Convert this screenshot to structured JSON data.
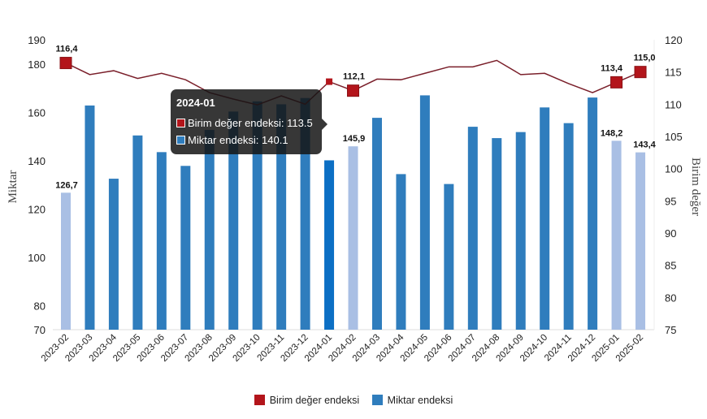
{
  "chart_data": {
    "type": "bar+line",
    "categories": [
      "2023-02",
      "2023-03",
      "2023-04",
      "2023-05",
      "2023-06",
      "2023-07",
      "2023-08",
      "2023-09",
      "2023-10",
      "2023-11",
      "2023-12",
      "2024-01",
      "2024-02",
      "2024-03",
      "2024-04",
      "2024-05",
      "2024-06",
      "2024-07",
      "2024-08",
      "2024-09",
      "2024-10",
      "2024-11",
      "2024-12",
      "2025-01",
      "2025-02"
    ],
    "series": [
      {
        "name": "Miktar endeksi",
        "type": "bar",
        "axis": "left",
        "color": "#2f7dbd",
        "highlight_color": "#a9bfe4",
        "hover_color": "#0c6fc4",
        "values": [
          126.7,
          162.8,
          132.5,
          150.4,
          143.5,
          137.8,
          152.7,
          160.3,
          164.5,
          163.3,
          165.9,
          140.1,
          145.9,
          157.7,
          134.4,
          167.0,
          130.3,
          154.0,
          149.3,
          151.8,
          162.0,
          155.5,
          166.1,
          148.2,
          143.4
        ]
      },
      {
        "name": "Birim değer endeksi",
        "type": "line",
        "axis": "right",
        "color": "#7a1f2a",
        "marker_color": "#b3151b",
        "values": [
          116.4,
          114.6,
          115.2,
          114.0,
          114.8,
          113.8,
          111.8,
          110.8,
          109.9,
          111.3,
          110.0,
          113.5,
          112.1,
          113.9,
          113.8,
          114.8,
          115.8,
          115.8,
          116.8,
          114.6,
          114.8,
          113.2,
          111.8,
          113.4,
          115.0
        ]
      }
    ],
    "highlighted_bars": [
      "2023-02",
      "2024-02",
      "2025-01",
      "2025-02"
    ],
    "bar_labels": [
      {
        "category": "2023-02",
        "text": "126,7"
      },
      {
        "category": "2024-02",
        "text": "145,9"
      },
      {
        "category": "2025-01",
        "text": "148,2"
      },
      {
        "category": "2025-02",
        "text": "143,4"
      }
    ],
    "line_labels": [
      {
        "category": "2023-02",
        "text": "116,4"
      },
      {
        "category": "2024-02",
        "text": "112,1"
      },
      {
        "category": "2025-01",
        "text": "113,4"
      },
      {
        "category": "2025-02",
        "text": "115,0"
      }
    ],
    "ylabel_left": "Miktar",
    "ylabel_right": "Birim değer",
    "ylim_left": [
      70,
      190
    ],
    "yticks_left": [
      70,
      80,
      100,
      120,
      140,
      160,
      180,
      190
    ],
    "ylim_right": [
      75,
      120
    ],
    "yticks_right": [
      75,
      80,
      85,
      90,
      95,
      100,
      105,
      110,
      115,
      120
    ],
    "grid": false,
    "legend_position": "bottom"
  },
  "tooltip": {
    "title": "2024-01",
    "line1": "Birim değer endeksi: 113.5",
    "line2": "Miktar endeksi: 140.1"
  },
  "legend": {
    "line_label": "Birim değer endeksi",
    "bar_label": "Miktar endeksi"
  }
}
